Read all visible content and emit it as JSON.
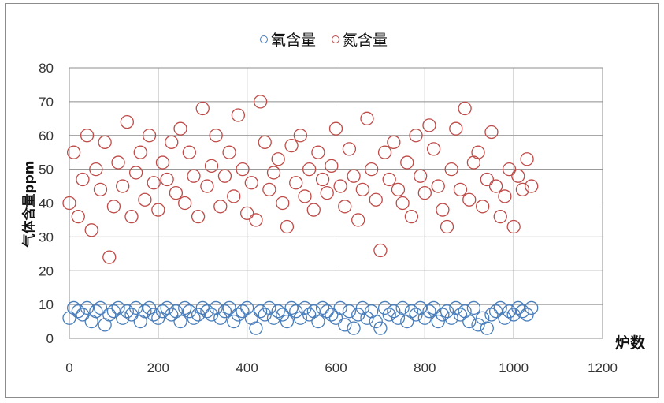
{
  "chart_data": {
    "type": "scatter",
    "title": "",
    "xlabel": "炉数",
    "ylabel": "气体含量ppm",
    "xlim": [
      0,
      1200
    ],
    "ylim": [
      0,
      80
    ],
    "xticks": [
      "0",
      "200",
      "400",
      "600",
      "800",
      "1000",
      "1200"
    ],
    "yticks": [
      "0",
      "10",
      "20",
      "30",
      "40",
      "50",
      "60",
      "70",
      "80"
    ],
    "grid": "horizontal",
    "legend": "top-center",
    "x_step": 10,
    "series": [
      {
        "name": "氧含量",
        "color": "#4a7ebb",
        "values": [
          6,
          9,
          8,
          7,
          9,
          5,
          8,
          9,
          4,
          7,
          8,
          9,
          6,
          8,
          7,
          9,
          5,
          8,
          9,
          7,
          6,
          8,
          9,
          7,
          8,
          5,
          9,
          8,
          6,
          7,
          9,
          8,
          7,
          9,
          6,
          8,
          9,
          5,
          7,
          8,
          9,
          6,
          3,
          8,
          7,
          9,
          6,
          8,
          7,
          5,
          9,
          8,
          6,
          9,
          7,
          8,
          5,
          9,
          8,
          7,
          6,
          9,
          4,
          8,
          3,
          7,
          9,
          6,
          8,
          5,
          3,
          9,
          7,
          8,
          6,
          9,
          5,
          8,
          7,
          9,
          6,
          8,
          9,
          5,
          7,
          8,
          6,
          9,
          7,
          8,
          5,
          9,
          4,
          6,
          3,
          7,
          8,
          9,
          6,
          8,
          7,
          9,
          8,
          7,
          9
        ]
      },
      {
        "name": "氮含量",
        "color": "#be4b48",
        "values": [
          40,
          55,
          36,
          47,
          60,
          32,
          50,
          44,
          58,
          24,
          39,
          52,
          45,
          64,
          36,
          49,
          55,
          41,
          60,
          46,
          38,
          52,
          47,
          58,
          43,
          62,
          40,
          55,
          48,
          36,
          68,
          45,
          51,
          60,
          39,
          48,
          55,
          42,
          66,
          50,
          37,
          46,
          35,
          70,
          58,
          44,
          49,
          53,
          40,
          33,
          57,
          46,
          60,
          42,
          50,
          38,
          55,
          47,
          43,
          51,
          62,
          45,
          39,
          56,
          48,
          35,
          44,
          65,
          50,
          41,
          26,
          55,
          47,
          58,
          44,
          40,
          52,
          36,
          60,
          48,
          43,
          63,
          56,
          45,
          38,
          33,
          50,
          62,
          44,
          68,
          41,
          52,
          55,
          39,
          47,
          61,
          45,
          36,
          42,
          50,
          33,
          48,
          44,
          53,
          45
        ]
      }
    ]
  }
}
